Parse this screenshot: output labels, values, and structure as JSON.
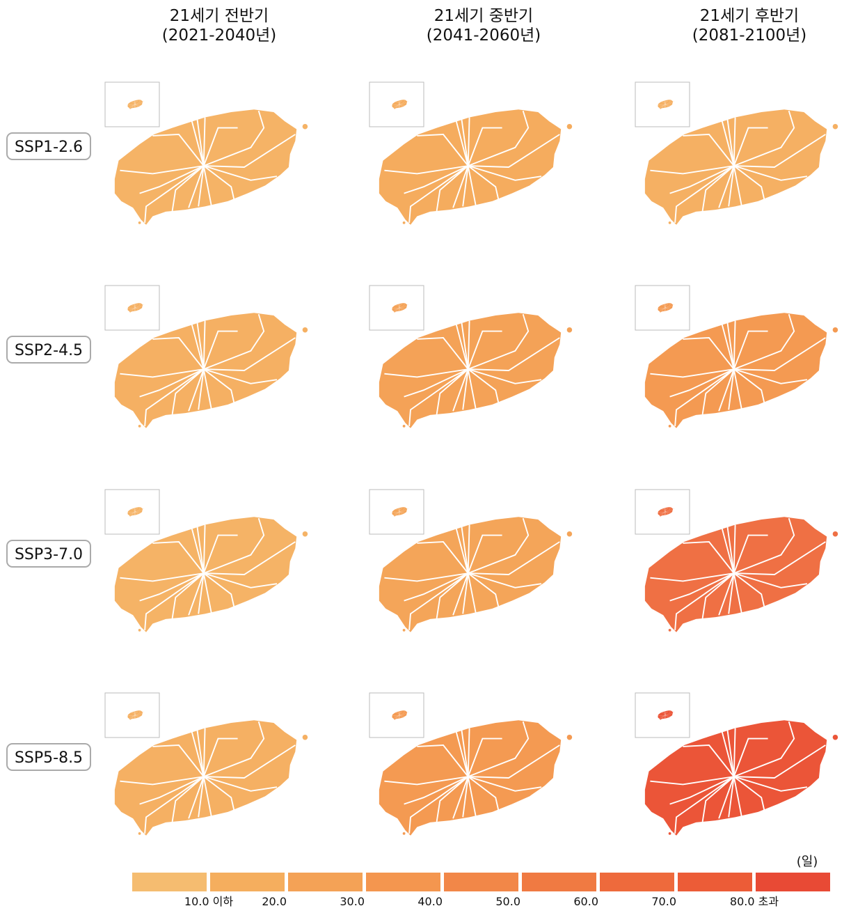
{
  "header": {
    "columns": [
      {
        "line1": "21세기 전반기",
        "line2": "(2021-2040년)"
      },
      {
        "line1": "21세기 중반기",
        "line2": "(2041-2060년)"
      },
      {
        "line1": "21세기 후반기",
        "line2": "(2081-2100년)"
      }
    ]
  },
  "rows": [
    {
      "label": "SSP1-2.6",
      "colors": [
        "#f5b366",
        "#f5ac5e",
        "#f5b063"
      ]
    },
    {
      "label": "SSP2-4.5",
      "colors": [
        "#f5b063",
        "#f4a257",
        "#f49a52"
      ]
    },
    {
      "label": "SSP3-7.0",
      "colors": [
        "#f5b366",
        "#f4a559",
        "#ef7044"
      ]
    },
    {
      "label": "SSP5-8.5",
      "colors": [
        "#f5b063",
        "#f49a52",
        "#eb5538"
      ]
    }
  ],
  "legend": {
    "unit": "(일)",
    "colors": [
      "#f5bc70",
      "#f5ae5e",
      "#f4a256",
      "#f4964f",
      "#f28748",
      "#f07a42",
      "#ee6a3c",
      "#ec5c37",
      "#e84a35"
    ],
    "labels": [
      "10.0 이하",
      "20.0",
      "30.0",
      "40.0",
      "50.0",
      "60.0",
      "70.0",
      "80.0 초과"
    ]
  }
}
